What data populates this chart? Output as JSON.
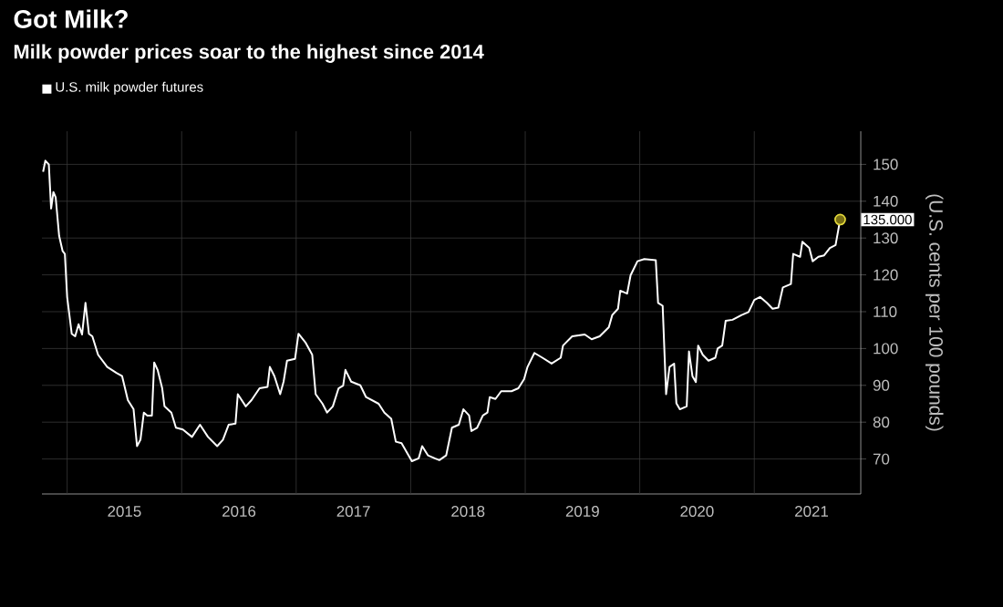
{
  "chart_data": {
    "type": "line",
    "title": "Got Milk?",
    "subtitle": "Milk powder prices soar to the highest since 2014",
    "ylabel": "(U.S. cents per 100 pounds)",
    "legend": "top left",
    "grid": true,
    "xlim": [
      2014.78,
      2021.93
    ],
    "ylim": [
      60.5,
      159
    ],
    "xticks": [
      {
        "value": 2015,
        "label": null
      },
      {
        "value": 2015.5,
        "label": "2015"
      },
      {
        "value": 2016,
        "label": null
      },
      {
        "value": 2016.5,
        "label": "2016"
      },
      {
        "value": 2017,
        "label": null
      },
      {
        "value": 2017.5,
        "label": "2017"
      },
      {
        "value": 2018,
        "label": null
      },
      {
        "value": 2018.5,
        "label": "2018"
      },
      {
        "value": 2019,
        "label": null
      },
      {
        "value": 2019.5,
        "label": "2019"
      },
      {
        "value": 2020,
        "label": null
      },
      {
        "value": 2020.5,
        "label": "2020"
      },
      {
        "value": 2021,
        "label": null
      },
      {
        "value": 2021.5,
        "label": "2021"
      }
    ],
    "yticks": [
      70,
      80,
      90,
      100,
      110,
      120,
      130,
      140,
      150
    ],
    "x": [
      2014.79,
      2014.81,
      2014.84,
      2014.86,
      2014.88,
      2014.9,
      2014.93,
      2014.96,
      2014.98,
      2015.0,
      2015.04,
      2015.07,
      2015.1,
      2015.13,
      2015.16,
      2015.19,
      2015.22,
      2015.27,
      2015.35,
      2015.43,
      2015.48,
      2015.53,
      2015.58,
      2015.61,
      2015.64,
      2015.67,
      2015.7,
      2015.74,
      2015.76,
      2015.79,
      2015.83,
      2015.85,
      2015.91,
      2015.95,
      2016.01,
      2016.09,
      2016.16,
      2016.23,
      2016.31,
      2016.36,
      2016.41,
      2016.47,
      2016.49,
      2016.56,
      2016.61,
      2016.68,
      2016.75,
      2016.77,
      2016.81,
      2016.86,
      2016.89,
      2016.92,
      2016.99,
      2017.02,
      2017.08,
      2017.14,
      2017.17,
      2017.23,
      2017.27,
      2017.32,
      2017.37,
      2017.41,
      2017.43,
      2017.48,
      2017.56,
      2017.61,
      2017.72,
      2017.77,
      2017.83,
      2017.87,
      2017.92,
      2018.01,
      2018.07,
      2018.1,
      2018.15,
      2018.21,
      2018.25,
      2018.31,
      2018.36,
      2018.42,
      2018.46,
      2018.51,
      2018.53,
      2018.58,
      2018.63,
      2018.67,
      2018.69,
      2018.74,
      2018.79,
      2018.88,
      2018.94,
      2018.99,
      2019.02,
      2019.08,
      2019.15,
      2019.23,
      2019.31,
      2019.33,
      2019.41,
      2019.52,
      2019.58,
      2019.65,
      2019.73,
      2019.76,
      2019.81,
      2019.83,
      2019.89,
      2019.92,
      2019.98,
      2020.04,
      2020.14,
      2020.16,
      2020.2,
      2020.23,
      2020.26,
      2020.3,
      2020.32,
      2020.35,
      2020.41,
      2020.43,
      2020.46,
      2020.49,
      2020.51,
      2020.55,
      2020.6,
      2020.66,
      2020.68,
      2020.72,
      2020.75,
      2020.81,
      2020.89,
      2020.95,
      2021.0,
      2021.05,
      2021.11,
      2021.16,
      2021.21,
      2021.25,
      2021.32,
      2021.34,
      2021.4,
      2021.42,
      2021.48,
      2021.51,
      2021.56,
      2021.61,
      2021.66,
      2021.71,
      2021.75
    ],
    "series": [
      {
        "name": "U.S. milk powder futures",
        "color": "#ffffff",
        "values": [
          148,
          151,
          150,
          138,
          142.5,
          141,
          130.6,
          126.5,
          125.7,
          114,
          104,
          103.3,
          106.6,
          103.8,
          112.4,
          104,
          103.3,
          98.3,
          95,
          93.4,
          92.5,
          86,
          83.5,
          73.5,
          75.2,
          82.6,
          81.8,
          81.8,
          96.2,
          94.2,
          89.2,
          84.3,
          82.6,
          78.5,
          78,
          76,
          79.3,
          76,
          73.5,
          75.2,
          79.3,
          79.6,
          87.6,
          84.3,
          86,
          89.2,
          89.6,
          95,
          92.5,
          87.6,
          91,
          96.7,
          97.2,
          104,
          101.7,
          98.3,
          87.6,
          85,
          82.6,
          84.3,
          89.2,
          89.9,
          94.2,
          91,
          90,
          86.8,
          85,
          82.6,
          80.9,
          74.7,
          74.3,
          69.4,
          70.2,
          73.5,
          71,
          70.2,
          69.7,
          71,
          78.5,
          79.3,
          83.5,
          81.8,
          77.6,
          78.5,
          81.8,
          82.6,
          86.8,
          86.3,
          88.4,
          88.4,
          89.2,
          91.7,
          95,
          98.8,
          97.5,
          95.9,
          97.5,
          100.8,
          103.3,
          103.8,
          102.5,
          103.3,
          105.8,
          109.1,
          110.8,
          115.7,
          114.9,
          119.9,
          123.7,
          124.3,
          124,
          112.4,
          111.6,
          87.6,
          95,
          95.9,
          85.1,
          83.5,
          84.3,
          99.2,
          92.5,
          90.9,
          100.8,
          98.3,
          96.7,
          97.5,
          100,
          100.8,
          107.5,
          107.8,
          109.1,
          109.9,
          113.2,
          114,
          112.4,
          110.8,
          111.1,
          116.6,
          117.5,
          125.7,
          124.9,
          129,
          127.3,
          123.7,
          124.9,
          125.3,
          127.3,
          128.1,
          135
        ]
      }
    ],
    "annotations": [
      {
        "text": "135.000",
        "x": 2021.75,
        "y": 135
      }
    ]
  }
}
